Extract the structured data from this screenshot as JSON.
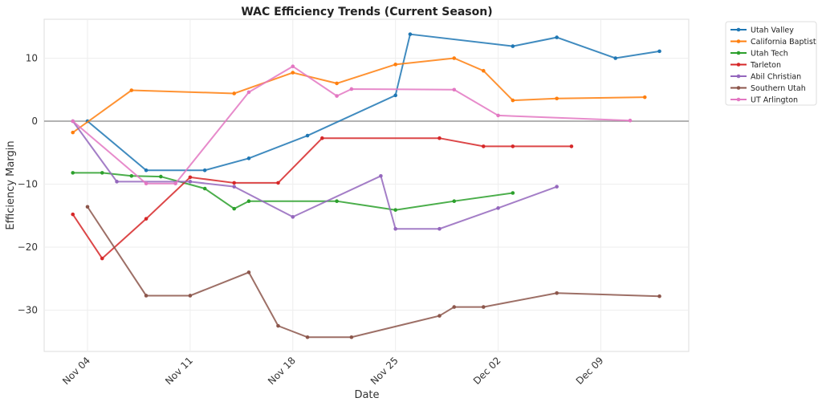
{
  "chart_data": {
    "type": "line",
    "title": "WAC Efficiency Trends (Current Season)",
    "xlabel": "Date",
    "ylabel": "Efficiency Margin",
    "xlim": [
      "11-01",
      "12-15"
    ],
    "ylim": [
      -36.5,
      16.5
    ],
    "yticks": [
      -30,
      -20,
      -10,
      0,
      10
    ],
    "ytick_labels": [
      "−30",
      "−20",
      "−10",
      "0",
      "10"
    ],
    "xticks": [
      "11-04",
      "11-11",
      "11-18",
      "11-25",
      "12-02",
      "12-09"
    ],
    "xtick_labels": [
      "Nov 04",
      "Nov 11",
      "Nov 18",
      "Nov 25",
      "Dec 02",
      "Dec 09"
    ],
    "grid": true,
    "reference_line": 0,
    "legend_position": "outside-top-right",
    "series": [
      {
        "name": "Utah Valley",
        "color": "#1f77b4",
        "x": [
          "11-04",
          "11-08",
          "11-12",
          "11-15",
          "11-19",
          "11-25",
          "11-26",
          "12-03",
          "12-06",
          "12-10",
          "12-13"
        ],
        "y": [
          0,
          -7.8,
          -7.8,
          -5.9,
          -2.3,
          4.1,
          13.8,
          11.9,
          13.3,
          10.0,
          11.1
        ]
      },
      {
        "name": "California Baptist",
        "color": "#ff7f0e",
        "x": [
          "11-03",
          "11-07",
          "11-14",
          "11-18",
          "11-21",
          "11-25",
          "11-29",
          "12-01",
          "12-03",
          "12-06",
          "12-12"
        ],
        "y": [
          -1.8,
          4.9,
          4.4,
          7.7,
          6.0,
          9.0,
          10.0,
          8.0,
          3.3,
          3.6,
          3.8
        ]
      },
      {
        "name": "Utah Tech",
        "color": "#2ca02c",
        "x": [
          "11-03",
          "11-05",
          "11-07",
          "11-09",
          "11-12",
          "11-14",
          "11-15",
          "11-21",
          "11-25",
          "11-29",
          "12-03"
        ],
        "y": [
          -8.2,
          -8.2,
          -8.7,
          -8.8,
          -10.7,
          -13.9,
          -12.7,
          -12.7,
          -14.1,
          -12.7,
          -11.4
        ]
      },
      {
        "name": "Tarleton",
        "color": "#d62728",
        "x": [
          "11-03",
          "11-05",
          "11-08",
          "11-11",
          "11-14",
          "11-17",
          "11-20",
          "11-28",
          "12-01",
          "12-03",
          "12-07"
        ],
        "y": [
          -14.8,
          -21.8,
          -15.5,
          -8.9,
          -9.8,
          -9.8,
          -2.7,
          -2.7,
          -4.0,
          -4.0,
          -4.0
        ]
      },
      {
        "name": "Abil Christian",
        "color": "#9467bd",
        "x": [
          "11-03",
          "11-06",
          "11-11",
          "11-14",
          "11-18",
          "11-24",
          "11-25",
          "11-28",
          "12-02",
          "12-06"
        ],
        "y": [
          0,
          -9.6,
          -9.6,
          -10.4,
          -15.2,
          -8.7,
          -17.1,
          -17.1,
          -13.8,
          -10.4
        ]
      },
      {
        "name": "Southern Utah",
        "color": "#8c564b",
        "x": [
          "11-04",
          "11-08",
          "11-11",
          "11-15",
          "11-17",
          "11-19",
          "11-22",
          "11-28",
          "11-29",
          "12-01",
          "12-06",
          "12-13"
        ],
        "y": [
          -13.6,
          -27.7,
          -27.7,
          -24.0,
          -32.5,
          -34.3,
          -34.3,
          -30.9,
          -29.5,
          -29.5,
          -27.3,
          -27.8
        ]
      },
      {
        "name": "UT Arlington",
        "color": "#e377c2",
        "x": [
          "11-03",
          "11-08",
          "11-10",
          "11-15",
          "11-18",
          "11-21",
          "11-22",
          "11-29",
          "12-02",
          "12-11"
        ],
        "y": [
          0,
          -9.9,
          -9.9,
          4.6,
          8.7,
          4.0,
          5.1,
          5.0,
          0.9,
          0.1
        ]
      }
    ]
  }
}
